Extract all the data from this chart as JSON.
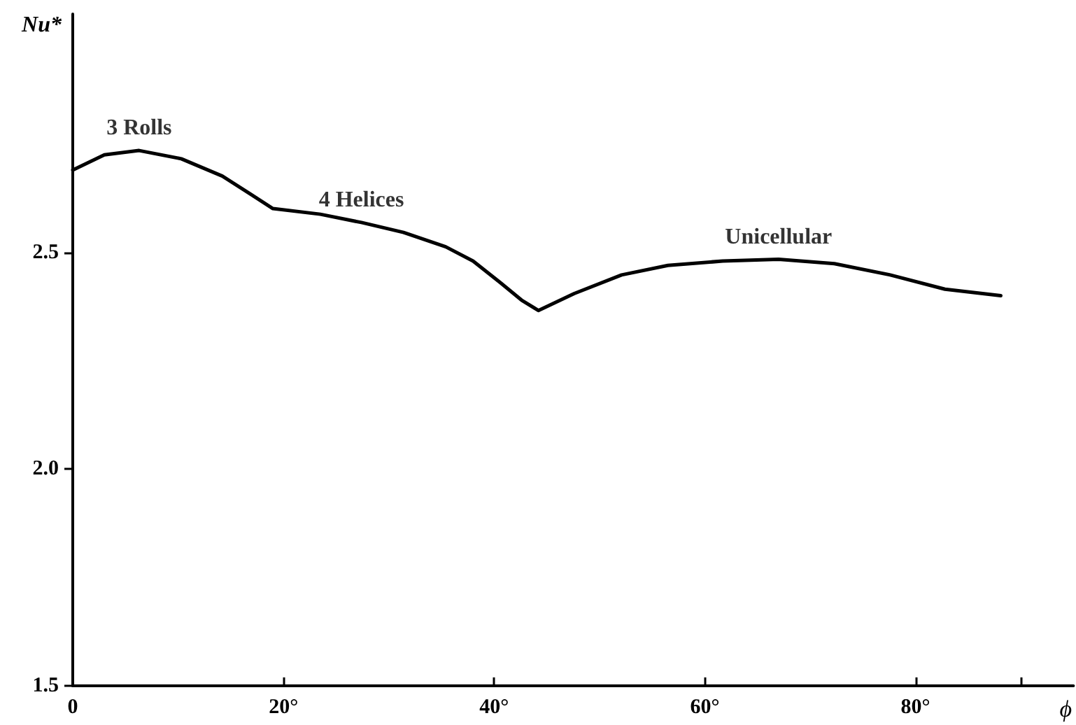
{
  "chart_data": {
    "type": "line",
    "xlabel": "ϕ",
    "ylabel": "Nu*",
    "xlim": [
      0,
      95
    ],
    "xticks": [
      {
        "value": 0,
        "label": "0"
      },
      {
        "value": 20,
        "label": "20°"
      },
      {
        "value": 40,
        "label": "40°"
      },
      {
        "value": 60,
        "label": "60°"
      },
      {
        "value": 80,
        "label": "80°"
      },
      {
        "value": 90,
        "label": null
      }
    ],
    "ylim": [
      1.5,
      3.05
    ],
    "yticks": [
      {
        "value": 1.5,
        "label": "1.5"
      },
      {
        "value": 2,
        "label": "2.0"
      },
      {
        "value": 2.5,
        "label": "2.5"
      }
    ],
    "grid": false,
    "marker": "none",
    "line_style": "solid",
    "series": [
      {
        "color": "#000000",
        "x": [
          0,
          3,
          6.3,
          10.3,
          14.2,
          16.9,
          19,
          23.5,
          27.4,
          31.4,
          35.4,
          38,
          40.6,
          42.6,
          44.2,
          47.6,
          52.1,
          56.5,
          61.7,
          67,
          72.3,
          77.6,
          82.8,
          88.1
        ],
        "values": [
          2.69,
          2.725,
          2.735,
          2.716,
          2.676,
          2.634,
          2.601,
          2.588,
          2.569,
          2.546,
          2.513,
          2.48,
          2.43,
          2.39,
          2.366,
          2.405,
          2.448,
          2.47,
          2.48,
          2.484,
          2.474,
          2.448,
          2.415,
          2.4
        ]
      }
    ],
    "annotations": [
      {
        "text": "3 Rolls",
        "x": 6.3,
        "y": 2.735
      },
      {
        "text": "4 Helices",
        "x": 27.4,
        "y": 2.569
      },
      {
        "text": "Unicellular",
        "x": 67,
        "y": 2.484
      }
    ]
  }
}
